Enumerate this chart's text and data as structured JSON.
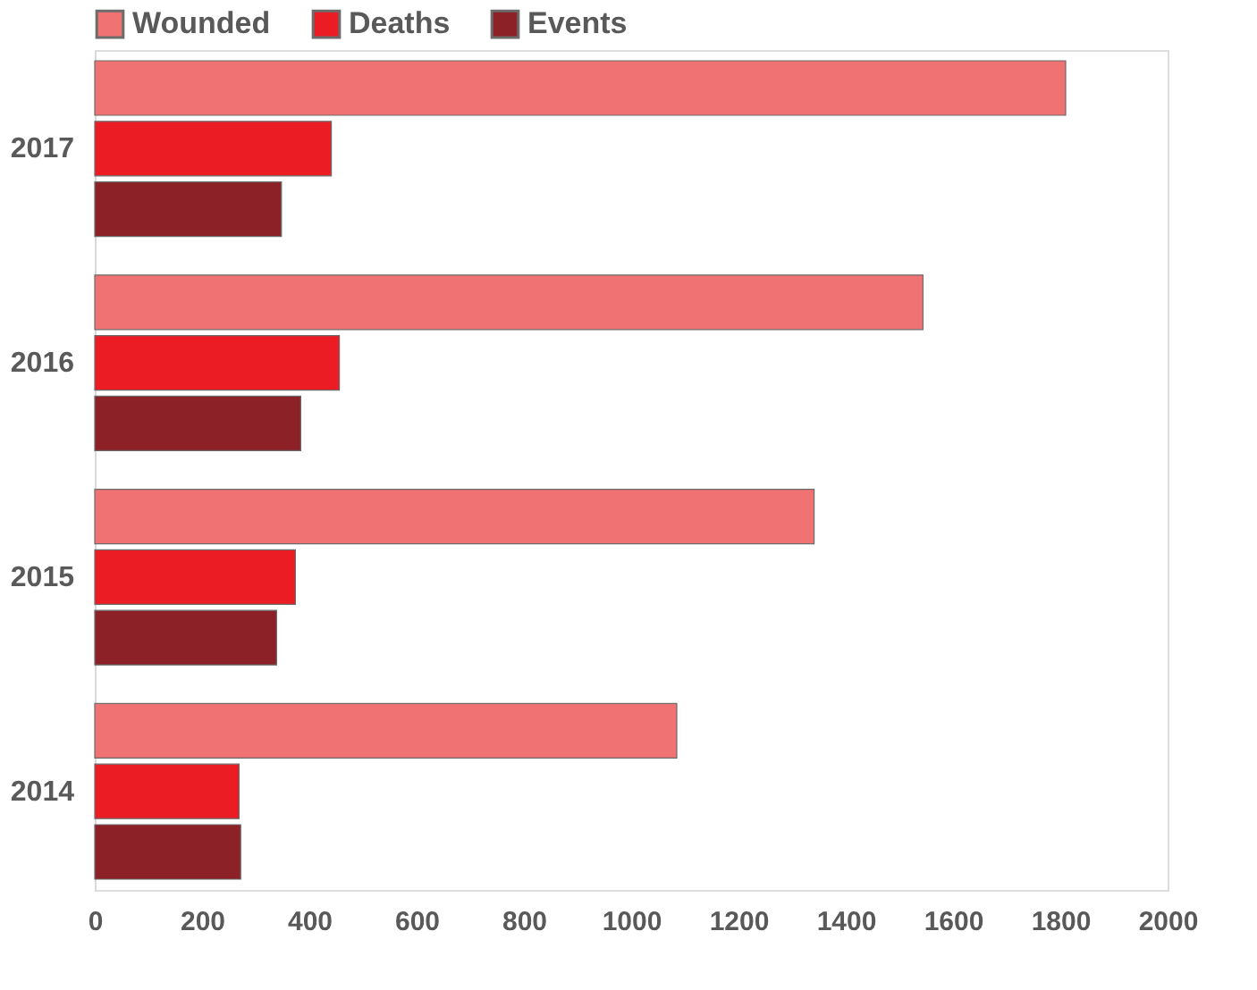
{
  "chart_data": {
    "type": "bar",
    "orientation": "horizontal",
    "categories": [
      "2017",
      "2016",
      "2015",
      "2014"
    ],
    "series": [
      {
        "name": "Wounded",
        "color": "#f07272",
        "values": [
          1810,
          1544,
          1341,
          1085
        ]
      },
      {
        "name": "Deaths",
        "color": "#ec1c24",
        "values": [
          441,
          456,
          374,
          269
        ]
      },
      {
        "name": "Events",
        "color": "#8c2127",
        "values": [
          348,
          384,
          339,
          272
        ]
      }
    ],
    "xlim": [
      0,
      2000
    ],
    "xticks": [
      0,
      200,
      400,
      600,
      800,
      1000,
      1200,
      1400,
      1600,
      1800,
      2000
    ],
    "grid": false,
    "legend": "top"
  }
}
